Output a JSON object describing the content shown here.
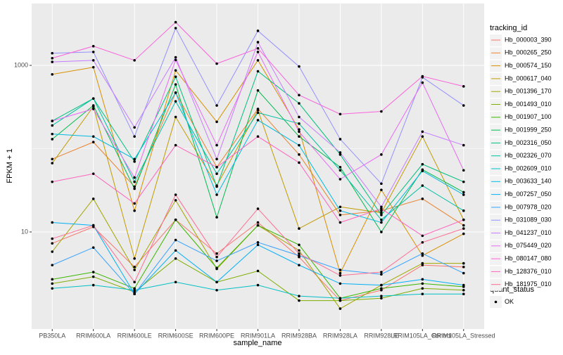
{
  "chart_data": {
    "type": "line",
    "y_label": "FPKM + 1",
    "x_label": "sample_name",
    "log_y": true,
    "grid": true,
    "ylim": [
      0.684,
      5530
    ],
    "yticks": [
      10,
      1000
    ],
    "categories": [
      "PB350LA",
      "RRIM600LA",
      "RRIM600LE",
      "RRIM600SE",
      "RRIM600PE",
      "RRIM901LA",
      "RRIM928BA",
      "RRIM928LA",
      "RRIM928LE",
      "RRIM105LA_Control",
      "RRIM105LA_Stressed"
    ],
    "legend_title": "tracking_id",
    "point_legend_title": "quant_status",
    "point_legend_label": "OK",
    "point_color": "#000000",
    "series": [
      {
        "name": "Hb_000003_390",
        "color": "#F8766D",
        "values": [
          7.3,
          11.5,
          3.8,
          14,
          5.5,
          13,
          5,
          1.5,
          2,
          4,
          3.8
        ]
      },
      {
        "name": "Hb_000265_250",
        "color": "#EA8331",
        "values": [
          75,
          120,
          35,
          470,
          60,
          300,
          85,
          16,
          18,
          25,
          12
        ]
      },
      {
        "name": "Hb_000574_150",
        "color": "#D89000",
        "values": [
          780,
          950,
          18,
          870,
          210,
          1150,
          170,
          3.2,
          32,
          5.2,
          9.5
        ]
      },
      {
        "name": "Hb_000617_040",
        "color": "#C09B00",
        "values": [
          67,
          320,
          4.8,
          240,
          36,
          290,
          11,
          20,
          17,
          140,
          14
        ]
      },
      {
        "name": "Hb_001396_170",
        "color": "#A3A500",
        "values": [
          5.8,
          25,
          3.5,
          24,
          3.6,
          12,
          6,
          1.2,
          2.3,
          4.2,
          4.2
        ]
      },
      {
        "name": "Hb_001493_010",
        "color": "#7CAE00",
        "values": [
          2.4,
          2.9,
          1.9,
          4.8,
          2.5,
          3.4,
          1.5,
          1.5,
          1.6,
          2.1,
          2
        ]
      },
      {
        "name": "Hb_001907_100",
        "color": "#39B600",
        "values": [
          2.7,
          3.3,
          2.1,
          14,
          3.7,
          12,
          7,
          1.6,
          2.1,
          2.4,
          2.2
        ]
      },
      {
        "name": "Hb_001999_250",
        "color": "#00BB4E",
        "values": [
          130,
          330,
          33,
          590,
          15,
          500,
          140,
          60,
          10,
          56,
          30
        ]
      },
      {
        "name": "Hb_002316_050",
        "color": "#00BF7D",
        "values": [
          215,
          400,
          70,
          730,
          35,
          850,
          350,
          85,
          16,
          65,
          40
        ]
      },
      {
        "name": "Hb_002326_070",
        "color": "#00C1A3",
        "values": [
          190,
          400,
          40,
          370,
          50,
          270,
          200,
          55,
          14,
          36,
          18
        ]
      },
      {
        "name": "Hb_002609_010",
        "color": "#00BFC4",
        "values": [
          2.1,
          2.3,
          2,
          2.5,
          2,
          2.3,
          1.7,
          1.6,
          1.7,
          1.8,
          1.8
        ]
      },
      {
        "name": "Hb_003633_140",
        "color": "#00BAE0",
        "values": [
          150,
          140,
          75,
          470,
          28,
          220,
          110,
          18,
          13,
          54,
          28
        ]
      },
      {
        "name": "Hb_007257_050",
        "color": "#00B0F6",
        "values": [
          13,
          12,
          1.8,
          6,
          2.5,
          7,
          4,
          2.4,
          2.3,
          2.7,
          2.3
        ]
      },
      {
        "name": "Hb_007978_020",
        "color": "#35A2FF",
        "values": [
          4,
          6.5,
          1.8,
          8,
          4.5,
          7.5,
          5.2,
          3.5,
          3.1,
          5.5,
          3.2
        ]
      },
      {
        "name": "Hb_031089_030",
        "color": "#9590FF",
        "values": [
          1400,
          1450,
          140,
          2800,
          330,
          2600,
          970,
          130,
          38,
          720,
          330
        ]
      },
      {
        "name": "Hb_041237_010",
        "color": "#C77CFF",
        "values": [
          1100,
          1150,
          180,
          1250,
          75,
          1900,
          240,
          90,
          20,
          160,
          110
        ]
      },
      {
        "name": "Hb_075449_020",
        "color": "#E76BF3",
        "values": [
          215,
          300,
          45,
          1160,
          110,
          1450,
          160,
          43,
          85,
          620,
          55
        ]
      },
      {
        "name": "Hb_080147_080",
        "color": "#FA62DB",
        "values": [
          1220,
          1700,
          1150,
          3300,
          1050,
          1600,
          440,
          260,
          280,
          740,
          560
        ]
      },
      {
        "name": "Hb_128376_010",
        "color": "#FF62BC",
        "values": [
          40,
          50,
          22,
          110,
          60,
          140,
          68,
          13,
          19,
          9,
          14
        ]
      },
      {
        "name": "Hb_181975_010",
        "color": "#FF6C91",
        "values": [
          8.3,
          12,
          2.5,
          28,
          5,
          19,
          5.5,
          3,
          3.3,
          7.5,
          11
        ]
      }
    ]
  }
}
